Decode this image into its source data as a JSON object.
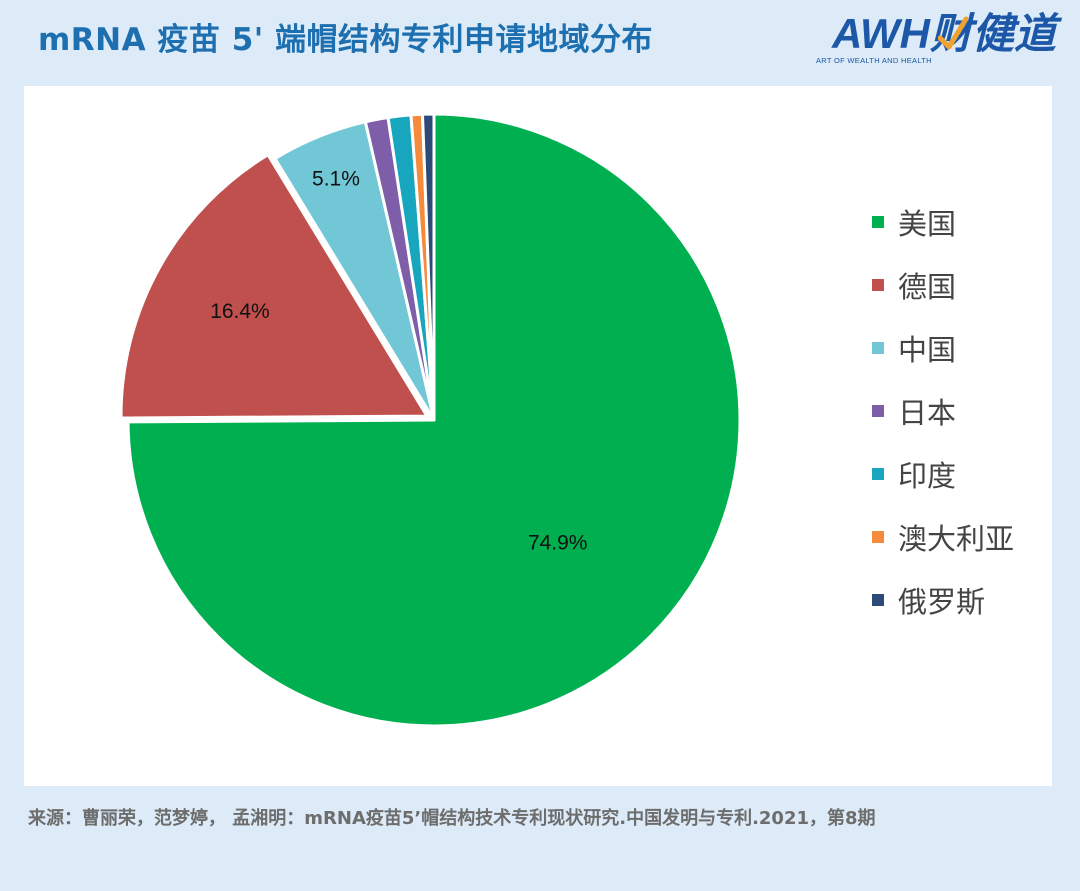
{
  "header": {
    "title": "mRNA 疫苗 5' 端帽结构专利申请地域分布",
    "logo_text": "AWH财健道",
    "logo_subtext": "ART OF WEALTH AND HEALTH"
  },
  "chart_data": {
    "type": "pie",
    "title": "",
    "start_angle_deg": 0,
    "direction": "clockwise",
    "legend_position": "right",
    "slices": [
      {
        "label": "美国",
        "value": 74.9,
        "color": "#00b050",
        "data_label": "74.9%"
      },
      {
        "label": "德国",
        "value": 16.4,
        "color": "#c0504d",
        "data_label": "16.4%"
      },
      {
        "label": "中国",
        "value": 5.1,
        "color": "#72c7d6",
        "data_label": "5.1%"
      },
      {
        "label": "日本",
        "value": 1.2,
        "color": "#7e5ea8",
        "data_label": ""
      },
      {
        "label": "印度",
        "value": 1.2,
        "color": "#18a6be",
        "data_label": ""
      },
      {
        "label": "澳大利亚",
        "value": 0.6,
        "color": "#f58a3c",
        "data_label": ""
      },
      {
        "label": "俄罗斯",
        "value": 0.6,
        "color": "#2e4a78",
        "data_label": ""
      }
    ]
  },
  "source": {
    "text": "来源：曹丽荣，范梦婷， 孟湘明：mRNA疫苗5’帽结构技术专利现状研究.中国发明与专利.2021，第8期"
  }
}
